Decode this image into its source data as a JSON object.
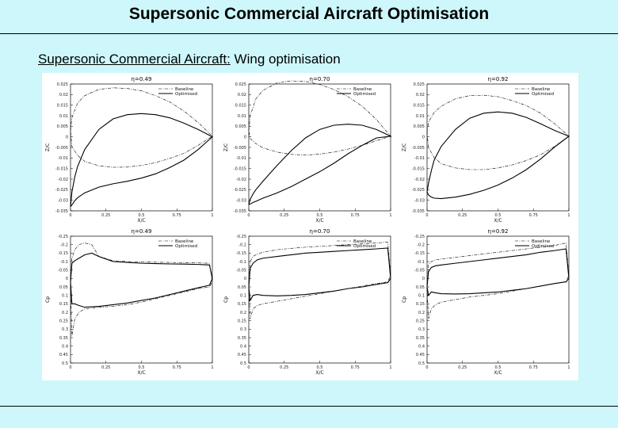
{
  "slide": {
    "title": "Supersonic Commercial Aircraft Optimisation",
    "subtitle_part1": "Supersonic Commercial Aircraft:",
    "subtitle_part2": " Wing optimisation"
  },
  "colors": {
    "background": "#cdf7fb",
    "plot_bg": "#ffffff",
    "line": "#000000"
  },
  "chart_data": [
    {
      "type": "line",
      "id": "geom-049",
      "title": "η=0.49",
      "xlabel": "X/C",
      "ylabel": "Z/C",
      "xlim": [
        0,
        1
      ],
      "ylim": [
        -0.035,
        0.025
      ],
      "xticks": [
        0,
        0.25,
        0.5,
        0.75,
        1
      ],
      "xticklabels": [
        "0",
        "0.25",
        "0.5",
        "0.75",
        "1"
      ],
      "yticks": [
        -0.035,
        -0.03,
        -0.025,
        -0.02,
        -0.015,
        -0.01,
        -0.005,
        0,
        0.005,
        0.01,
        0.015,
        0.02,
        0.025
      ],
      "yticklabels": [
        "-0.035",
        "-0.03",
        "-0.025",
        "-0.02",
        "-0.015",
        "-0.01",
        "-0.005",
        "0",
        "0.005",
        "0.01",
        "0.015",
        "0.02",
        "0.025"
      ],
      "series": [
        {
          "name": "Baseline",
          "style": "dashdot",
          "x": [
            0,
            0.01,
            0.05,
            0.1,
            0.2,
            0.3,
            0.4,
            0.5,
            0.6,
            0.7,
            0.8,
            0.9,
            1,
            0.9,
            0.8,
            0.7,
            0.6,
            0.5,
            0.4,
            0.3,
            0.2,
            0.1,
            0.05,
            0.01,
            0
          ],
          "y": [
            0.003,
            0.009,
            0.016,
            0.0195,
            0.0225,
            0.0232,
            0.0229,
            0.0218,
            0.0195,
            0.0165,
            0.0122,
            0.0068,
            0.0003,
            -0.004,
            -0.0078,
            -0.0102,
            -0.0122,
            -0.0135,
            -0.0143,
            -0.0144,
            -0.0137,
            -0.0116,
            -0.0088,
            -0.0045,
            0.003
          ]
        },
        {
          "name": "Optimised",
          "style": "solid",
          "x": [
            0,
            0.01,
            0.03,
            0.05,
            0.1,
            0.2,
            0.3,
            0.4,
            0.5,
            0.6,
            0.7,
            0.8,
            0.9,
            1,
            0.9,
            0.8,
            0.7,
            0.6,
            0.5,
            0.4,
            0.3,
            0.2,
            0.1,
            0.05,
            0.03,
            0.01,
            0
          ],
          "y": [
            -0.033,
            -0.026,
            -0.019,
            -0.014,
            -0.006,
            0.0035,
            0.0085,
            0.0105,
            0.011,
            0.0105,
            0.009,
            0.0065,
            0.0035,
            0,
            -0.006,
            -0.011,
            -0.0145,
            -0.0175,
            -0.0195,
            -0.021,
            -0.0222,
            -0.0238,
            -0.0265,
            -0.0288,
            -0.0302,
            -0.0322,
            -0.033
          ]
        }
      ]
    },
    {
      "type": "line",
      "id": "geom-070",
      "title": "η=0.70",
      "xlabel": "X/C",
      "ylabel": "Z/C",
      "xlim": [
        0,
        1
      ],
      "ylim": [
        -0.035,
        0.025
      ],
      "xticks": [
        0,
        0.25,
        0.5,
        0.75,
        1
      ],
      "xticklabels": [
        "0",
        "0.25",
        "0.5",
        "0.75",
        "1"
      ],
      "yticks": [
        -0.035,
        -0.03,
        -0.025,
        -0.02,
        -0.015,
        -0.01,
        -0.005,
        0,
        0.005,
        0.01,
        0.015,
        0.02,
        0.025
      ],
      "yticklabels": [
        "-0.035",
        "-0.03",
        "-0.025",
        "-0.02",
        "-0.015",
        "-0.01",
        "-0.005",
        "0",
        "0.005",
        "0.01",
        "0.015",
        "0.02",
        "0.025"
      ],
      "series": [
        {
          "name": "Baseline",
          "style": "dashdot",
          "x": [
            0,
            0.01,
            0.05,
            0.1,
            0.2,
            0.3,
            0.4,
            0.5,
            0.6,
            0.7,
            0.8,
            0.9,
            1,
            0.9,
            0.8,
            0.7,
            0.6,
            0.5,
            0.4,
            0.3,
            0.2,
            0.1,
            0.05,
            0.01,
            0
          ],
          "y": [
            0.003,
            0.01,
            0.018,
            0.022,
            0.0255,
            0.0265,
            0.0262,
            0.0248,
            0.0224,
            0.019,
            0.0145,
            0.0082,
            0.0003,
            -0.0018,
            -0.004,
            -0.0058,
            -0.0072,
            -0.0082,
            -0.0086,
            -0.0083,
            -0.0072,
            -0.0052,
            -0.0032,
            -0.0008,
            0.003
          ]
        },
        {
          "name": "Optimised",
          "style": "solid",
          "x": [
            0,
            0.01,
            0.03,
            0.05,
            0.1,
            0.2,
            0.3,
            0.4,
            0.5,
            0.6,
            0.7,
            0.8,
            0.9,
            1,
            0.9,
            0.8,
            0.7,
            0.6,
            0.5,
            0.4,
            0.3,
            0.2,
            0.1,
            0.05,
            0.03,
            0.01,
            0
          ],
          "y": [
            -0.032,
            -0.0295,
            -0.027,
            -0.025,
            -0.021,
            -0.0135,
            -0.0065,
            -0.0005,
            0.0035,
            0.0055,
            0.006,
            0.0055,
            0.0035,
            0.0003,
            -0.0005,
            -0.004,
            -0.008,
            -0.0125,
            -0.0165,
            -0.02,
            -0.0235,
            -0.0265,
            -0.029,
            -0.0305,
            -0.031,
            -0.0318,
            -0.032
          ]
        }
      ]
    },
    {
      "type": "line",
      "id": "geom-092",
      "title": "η=0.92",
      "xlabel": "X/C",
      "ylabel": "Z/C",
      "xlim": [
        0,
        1
      ],
      "ylim": [
        -0.035,
        0.025
      ],
      "xticks": [
        0,
        0.25,
        0.5,
        0.75,
        1
      ],
      "xticklabels": [
        "0",
        "0.25",
        "0.5",
        "0.75",
        "1"
      ],
      "yticks": [
        -0.035,
        -0.03,
        -0.025,
        -0.02,
        -0.015,
        -0.01,
        -0.005,
        0,
        0.005,
        0.01,
        0.015,
        0.02,
        0.025
      ],
      "yticklabels": [
        "-0.035",
        "-0.03",
        "-0.025",
        "-0.02",
        "-0.015",
        "-0.01",
        "-0.005",
        "0",
        "0.005",
        "0.01",
        "0.015",
        "0.02",
        "0.025"
      ],
      "series": [
        {
          "name": "Baseline",
          "style": "dashdot",
          "x": [
            0,
            0.01,
            0.05,
            0.1,
            0.2,
            0.3,
            0.4,
            0.5,
            0.6,
            0.7,
            0.8,
            0.9,
            1,
            0.9,
            0.8,
            0.7,
            0.6,
            0.5,
            0.4,
            0.3,
            0.2,
            0.1,
            0.05,
            0.01,
            0
          ],
          "y": [
            0.002,
            0.007,
            0.0115,
            0.0145,
            0.018,
            0.0195,
            0.0197,
            0.019,
            0.0172,
            0.0148,
            0.0112,
            0.0062,
            0.0003,
            -0.0045,
            -0.0085,
            -0.0112,
            -0.0133,
            -0.0147,
            -0.0155,
            -0.0155,
            -0.0147,
            -0.0127,
            -0.0098,
            -0.005,
            0.002
          ]
        },
        {
          "name": "Optimised",
          "style": "solid",
          "x": [
            0,
            0.01,
            0.03,
            0.05,
            0.1,
            0.2,
            0.3,
            0.4,
            0.5,
            0.6,
            0.7,
            0.8,
            0.9,
            1,
            0.9,
            0.8,
            0.7,
            0.6,
            0.5,
            0.4,
            0.3,
            0.2,
            0.1,
            0.05,
            0.03,
            0.01,
            0
          ],
          "y": [
            -0.026,
            -0.022,
            -0.016,
            -0.011,
            -0.0045,
            0.0035,
            0.0088,
            0.0112,
            0.0118,
            0.0112,
            0.0092,
            0.0062,
            0.003,
            0.0003,
            -0.0048,
            -0.0105,
            -0.0155,
            -0.0195,
            -0.0228,
            -0.0253,
            -0.0272,
            -0.0285,
            -0.0292,
            -0.029,
            -0.0285,
            -0.0275,
            -0.026
          ]
        }
      ]
    },
    {
      "type": "line",
      "id": "cp-049",
      "title": "η=0.49",
      "xlabel": "X/C",
      "ylabel": "Cp",
      "xlim": [
        0,
        1
      ],
      "ylim": [
        0.5,
        -0.25
      ],
      "y_inverted": true,
      "xticks": [
        0,
        0.25,
        0.5,
        0.75,
        1
      ],
      "xticklabels": [
        "0",
        "0.25",
        "0.5",
        "0.75",
        "1"
      ],
      "yticks": [
        -0.25,
        -0.2,
        -0.15,
        -0.1,
        -0.05,
        0,
        0.05,
        0.1,
        0.15,
        0.2,
        0.25,
        0.3,
        0.35,
        0.4,
        0.45,
        0.5
      ],
      "yticklabels": [
        "-0.25",
        "-0.2",
        "-0.15",
        "-0.1",
        "-0.05",
        "0",
        "0.05",
        "0.1",
        "0.15",
        "0.2",
        "0.25",
        "0.3",
        "0.35",
        "0.4",
        "0.45",
        "0.5"
      ],
      "series": [
        {
          "name": "Baseline",
          "style": "dashdot",
          "x": [
            0,
            0.01,
            0.03,
            0.06,
            0.1,
            0.15,
            0.2,
            0.3,
            0.4,
            0.5,
            0.6,
            0.7,
            0.8,
            0.9,
            0.98,
            1,
            0.98,
            0.9,
            0.8,
            0.7,
            0.6,
            0.5,
            0.4,
            0.3,
            0.2,
            0.1,
            0.06,
            0.03,
            0.01,
            0
          ],
          "y": [
            0.05,
            -0.12,
            -0.17,
            -0.2,
            -0.21,
            -0.2,
            -0.13,
            -0.105,
            -0.1,
            -0.098,
            -0.096,
            -0.095,
            -0.094,
            -0.092,
            -0.09,
            0.02,
            0.05,
            0.06,
            0.08,
            0.1,
            0.12,
            0.14,
            0.155,
            0.165,
            0.17,
            0.18,
            0.2,
            0.24,
            0.34,
            0.05
          ]
        },
        {
          "name": "Optimised",
          "style": "solid",
          "x": [
            0,
            0.01,
            0.03,
            0.06,
            0.1,
            0.15,
            0.2,
            0.3,
            0.4,
            0.5,
            0.6,
            0.7,
            0.8,
            0.9,
            0.98,
            1,
            0.98,
            0.9,
            0.8,
            0.7,
            0.6,
            0.5,
            0.4,
            0.3,
            0.2,
            0.1,
            0.06,
            0.03,
            0.01,
            0
          ],
          "y": [
            0.02,
            -0.09,
            -0.105,
            -0.12,
            -0.14,
            -0.15,
            -0.13,
            -0.1,
            -0.095,
            -0.09,
            -0.088,
            -0.086,
            -0.085,
            -0.083,
            -0.08,
            0.0,
            0.04,
            0.055,
            0.075,
            0.095,
            0.115,
            0.13,
            0.145,
            0.155,
            0.165,
            0.17,
            0.16,
            0.15,
            0.15,
            0.02
          ]
        }
      ]
    },
    {
      "type": "line",
      "id": "cp-070",
      "title": "η=0.70",
      "xlabel": "X/C",
      "ylabel": "Cp",
      "xlim": [
        0,
        1
      ],
      "ylim": [
        0.5,
        -0.25
      ],
      "y_inverted": true,
      "xticks": [
        0,
        0.25,
        0.5,
        0.75,
        1
      ],
      "xticklabels": [
        "0",
        "0.25",
        "0.5",
        "0.75",
        "1"
      ],
      "yticks": [
        -0.25,
        -0.2,
        -0.15,
        -0.1,
        -0.05,
        0,
        0.05,
        0.1,
        0.15,
        0.2,
        0.25,
        0.3,
        0.35,
        0.4,
        0.45,
        0.5
      ],
      "yticklabels": [
        "-0.25",
        "-0.2",
        "-0.15",
        "-0.1",
        "-0.05",
        "0",
        "0.05",
        "0.1",
        "0.15",
        "0.2",
        "0.25",
        "0.3",
        "0.35",
        "0.4",
        "0.45",
        "0.5"
      ],
      "series": [
        {
          "name": "Baseline",
          "style": "dashdot",
          "x": [
            0,
            0.01,
            0.03,
            0.06,
            0.1,
            0.2,
            0.3,
            0.4,
            0.5,
            0.6,
            0.7,
            0.8,
            0.9,
            0.98,
            1,
            0.98,
            0.9,
            0.8,
            0.7,
            0.6,
            0.5,
            0.4,
            0.3,
            0.2,
            0.1,
            0.06,
            0.03,
            0.01,
            0
          ],
          "y": [
            0.05,
            -0.1,
            -0.13,
            -0.145,
            -0.155,
            -0.17,
            -0.178,
            -0.185,
            -0.19,
            -0.195,
            -0.2,
            -0.205,
            -0.21,
            -0.215,
            -0.02,
            0.02,
            0.03,
            0.045,
            0.06,
            0.075,
            0.09,
            0.105,
            0.12,
            0.135,
            0.15,
            0.16,
            0.18,
            0.24,
            0.05
          ]
        },
        {
          "name": "Optimised",
          "style": "solid",
          "x": [
            0,
            0.01,
            0.03,
            0.06,
            0.1,
            0.2,
            0.3,
            0.4,
            0.5,
            0.6,
            0.7,
            0.8,
            0.9,
            0.98,
            1,
            0.98,
            0.9,
            0.8,
            0.7,
            0.6,
            0.5,
            0.4,
            0.3,
            0.2,
            0.1,
            0.06,
            0.03,
            0.01,
            0
          ],
          "y": [
            0.05,
            -0.06,
            -0.09,
            -0.11,
            -0.12,
            -0.13,
            -0.14,
            -0.15,
            -0.155,
            -0.16,
            -0.165,
            -0.17,
            -0.175,
            -0.18,
            0.0,
            0.025,
            0.035,
            0.05,
            0.06,
            0.075,
            0.085,
            0.095,
            0.1,
            0.103,
            0.1,
            0.095,
            0.1,
            0.13,
            0.05
          ]
        }
      ]
    },
    {
      "type": "line",
      "id": "cp-092",
      "title": "η=0.92",
      "xlabel": "X/C",
      "ylabel": "Cp",
      "xlim": [
        0,
        1
      ],
      "ylim": [
        0.5,
        -0.25
      ],
      "y_inverted": true,
      "xticks": [
        0,
        0.25,
        0.5,
        0.75,
        1
      ],
      "xticklabels": [
        "0",
        "0.25",
        "0.5",
        "0.75",
        "1"
      ],
      "yticks": [
        -0.25,
        -0.2,
        -0.15,
        -0.1,
        -0.05,
        0,
        0.05,
        0.1,
        0.15,
        0.2,
        0.25,
        0.3,
        0.35,
        0.4,
        0.45,
        0.5
      ],
      "yticklabels": [
        "-0.25",
        "-0.2",
        "-0.15",
        "-0.1",
        "-0.05",
        "0",
        "0.05",
        "0.1",
        "0.15",
        "0.2",
        "0.25",
        "0.3",
        "0.35",
        "0.4",
        "0.45",
        "0.5"
      ],
      "series": [
        {
          "name": "Baseline",
          "style": "dashdot",
          "x": [
            0,
            0.01,
            0.03,
            0.06,
            0.1,
            0.2,
            0.3,
            0.4,
            0.5,
            0.6,
            0.7,
            0.8,
            0.9,
            0.98,
            1,
            0.98,
            0.9,
            0.8,
            0.7,
            0.6,
            0.5,
            0.4,
            0.3,
            0.2,
            0.1,
            0.06,
            0.03,
            0.01,
            0
          ],
          "y": [
            0.05,
            -0.08,
            -0.1,
            -0.11,
            -0.115,
            -0.125,
            -0.135,
            -0.145,
            -0.155,
            -0.165,
            -0.175,
            -0.185,
            -0.195,
            -0.21,
            -0.02,
            0.02,
            0.03,
            0.045,
            0.06,
            0.075,
            0.09,
            0.1,
            0.11,
            0.125,
            0.14,
            0.155,
            0.18,
            0.24,
            0.05
          ]
        },
        {
          "name": "Optimised",
          "style": "solid",
          "x": [
            0,
            0.01,
            0.03,
            0.06,
            0.1,
            0.2,
            0.3,
            0.4,
            0.5,
            0.6,
            0.7,
            0.8,
            0.9,
            0.98,
            1,
            0.98,
            0.9,
            0.8,
            0.7,
            0.6,
            0.5,
            0.4,
            0.3,
            0.2,
            0.1,
            0.06,
            0.03,
            0.01,
            0
          ],
          "y": [
            0.05,
            -0.04,
            -0.065,
            -0.075,
            -0.08,
            -0.09,
            -0.1,
            -0.11,
            -0.12,
            -0.13,
            -0.14,
            -0.155,
            -0.165,
            -0.175,
            0.0,
            0.02,
            0.03,
            0.045,
            0.06,
            0.07,
            0.08,
            0.085,
            0.09,
            0.092,
            0.09,
            0.085,
            0.08,
            0.1,
            0.05
          ]
        }
      ]
    }
  ]
}
